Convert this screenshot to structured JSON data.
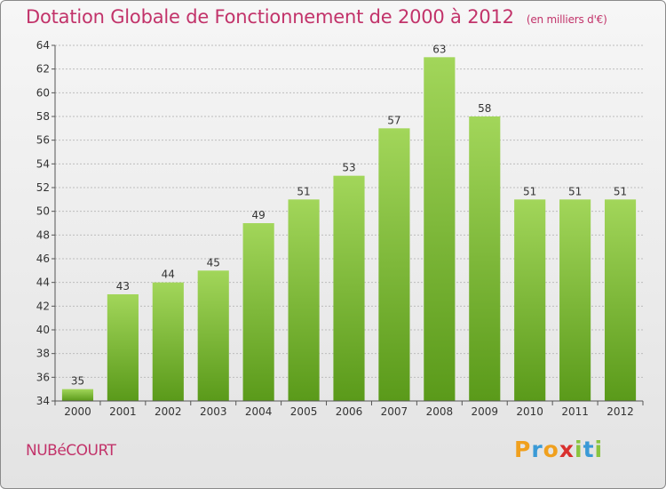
{
  "chart_title": "Dotation Globale de Fonctionnement de 2000 à 2012",
  "chart_subtitle": "(en milliers d'€)",
  "town_name": "NUBéCOURT",
  "logo": {
    "text": "Proxiti",
    "letters": [
      {
        "ch": "P",
        "color": "#f0a01e"
      },
      {
        "ch": "r",
        "color": "#3a9ad6"
      },
      {
        "ch": "o",
        "color": "#f0a01e"
      },
      {
        "ch": "x",
        "color": "#d9302e"
      },
      {
        "ch": "i",
        "color": "#8ac43f"
      },
      {
        "ch": "t",
        "color": "#3a9ad6"
      },
      {
        "ch": "i",
        "color": "#8ac43f"
      }
    ]
  },
  "colors": {
    "title": "#c2336a",
    "bar_top": "#a2d65a",
    "bar_bottom": "#5a9a1a",
    "grid": "#bdbdbd"
  },
  "chart_data": {
    "type": "bar",
    "title": "Dotation Globale de Fonctionnement de 2000 à 2012",
    "subtitle": "(en milliers d'€)",
    "categories": [
      "2000",
      "2001",
      "2002",
      "2003",
      "2004",
      "2005",
      "2006",
      "2007",
      "2008",
      "2009",
      "2010",
      "2011",
      "2012"
    ],
    "values": [
      35,
      43,
      44,
      45,
      49,
      51,
      53,
      57,
      63,
      58,
      51,
      51,
      51
    ],
    "ylim": [
      34,
      64
    ],
    "yticks": [
      34,
      36,
      38,
      40,
      42,
      44,
      46,
      48,
      50,
      52,
      54,
      56,
      58,
      60,
      62,
      64
    ],
    "grid": true,
    "xlabel": "",
    "ylabel": ""
  }
}
